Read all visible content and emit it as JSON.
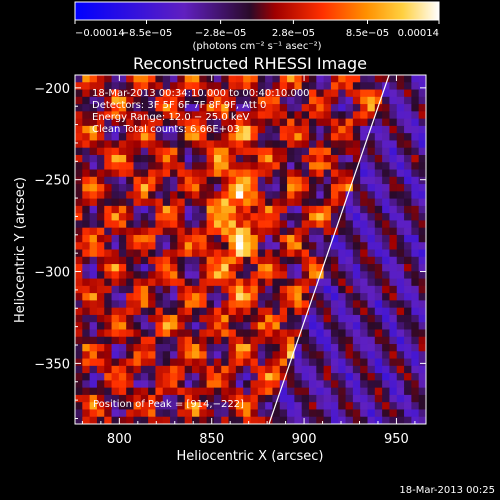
{
  "chart_data": {
    "type": "heatmap",
    "title": "Reconstructed RHESSI Image",
    "xlabel": "Heliocentric X (arcsec)",
    "ylabel": "Heliocentric Y (arcsec)",
    "xlim": [
      776,
      966
    ],
    "ylim": [
      -383,
      -193
    ],
    "x_ticks": [
      800,
      850,
      900,
      950
    ],
    "x_tick_labels": [
      "800",
      "850",
      "900",
      "950"
    ],
    "y_ticks": [
      -200,
      -250,
      -300,
      -350
    ],
    "y_tick_labels": [
      "−200",
      "−250",
      "−300",
      "−350"
    ],
    "colorbar": {
      "range": [
        -0.00014,
        0.00014
      ],
      "ticks": [
        -0.00014,
        -8.5e-05,
        -2.8e-05,
        2.8e-05,
        8.5e-05,
        0.00014
      ],
      "tick_labels": [
        "−0.00014",
        "−8.5e−05",
        "−2.8e−05",
        "2.8e−05",
        "8.5e−05",
        "0.00014"
      ],
      "units": "(photons cm⁻² s⁻¹ asec⁻²)",
      "colors": [
        "#0000ff",
        "#6020c0",
        "#2a0a2a",
        "#a00000",
        "#ff3000",
        "#ff9000",
        "#ffd040",
        "#ffffff"
      ]
    },
    "grid": false,
    "limb_line": {
      "from": [
        881,
        -383
      ],
      "to": [
        946,
        -193
      ],
      "color": "#ffffff"
    },
    "annotations": [
      "18-Mar-2013 00:34:10.000 to 00:40:10.000",
      "Detectors: 3F 5F 6F 7F 8F 9F, Att 0",
      "Energy Range: 12.0 − 25.0 keV",
      "Clean      Total counts: 6.66E+03",
      "Position of Peak = [914,−222]"
    ],
    "peak_position": [
      914,
      -222
    ],
    "footer_date": "18-Mar-2013 00:25",
    "image_grid": {
      "columns": 48,
      "rows": 48
    }
  }
}
